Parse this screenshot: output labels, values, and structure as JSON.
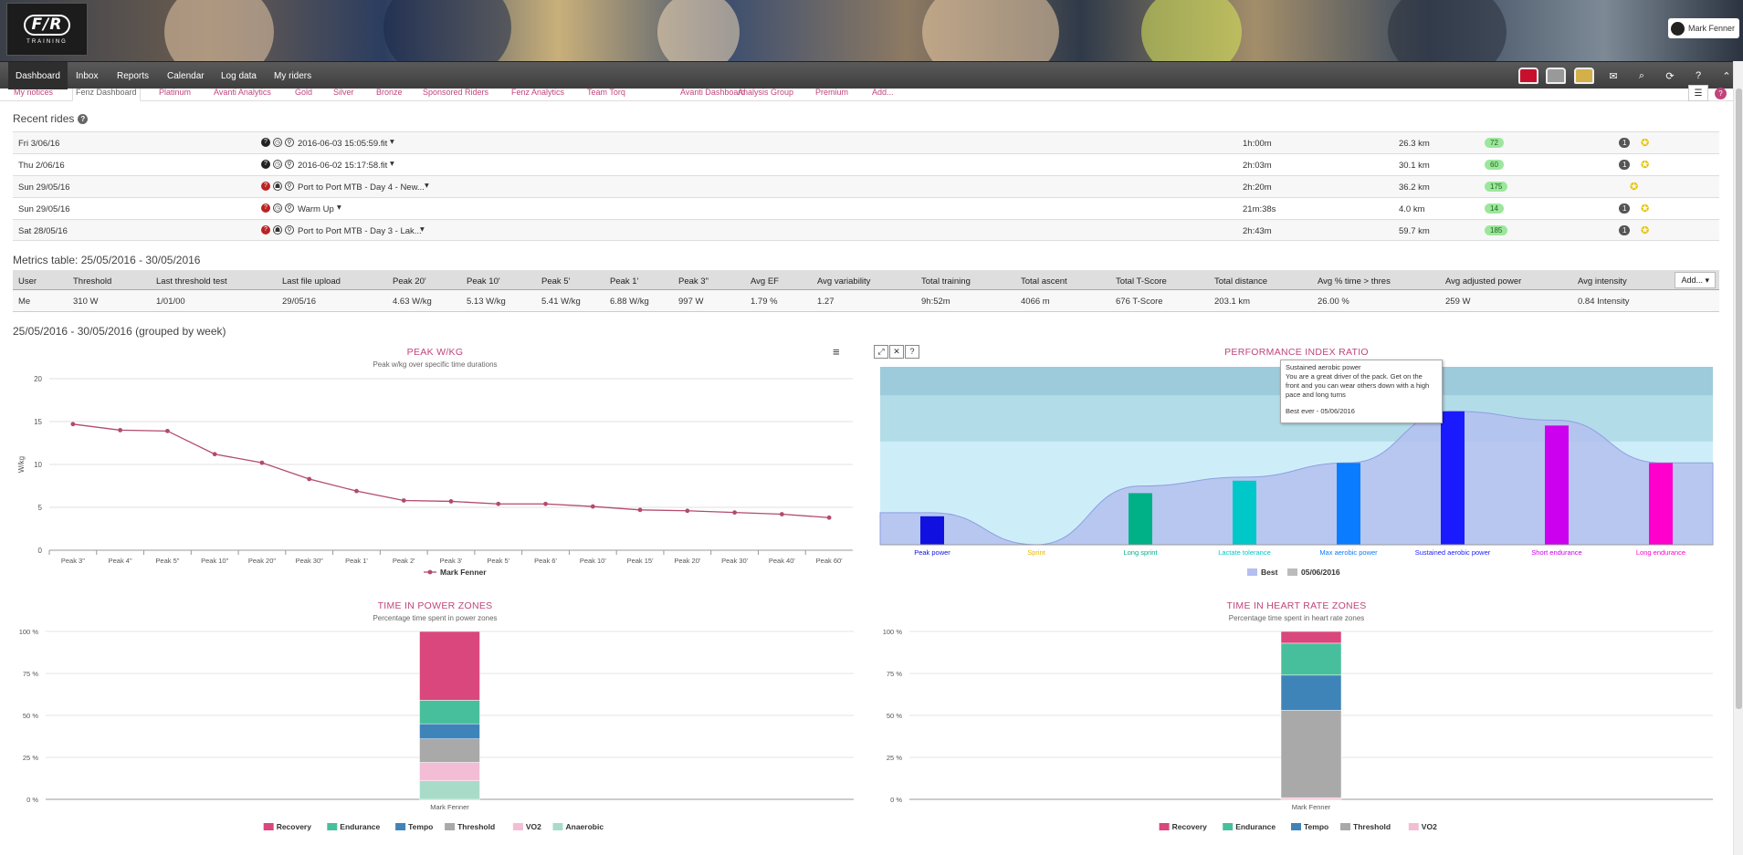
{
  "banner": {
    "logo_text": "F/R",
    "logo_sub": "TRAINING",
    "user_name": "Mark Fenner"
  },
  "nav": {
    "items": [
      "Dashboard",
      "Inbox",
      "Reports",
      "Calendar",
      "Log data",
      "My riders"
    ],
    "active": "Dashboard"
  },
  "tabs": {
    "items": [
      "My notices",
      "Fenz Dashboard",
      "Platinum",
      "Avanti Analytics",
      "Gold",
      "Silver",
      "Bronze",
      "Sponsored Riders",
      "Fenz Analytics",
      "Team Torq",
      "Avanti Dashboard",
      "Analysis Group",
      "Premium",
      "Add..."
    ],
    "active": "Fenz Dashboard",
    "badge": "?"
  },
  "recent_rides": {
    "title": "Recent rides",
    "rows": [
      {
        "date": "Fri 3/06/16",
        "name": "2016-06-03 15:05:59.fit",
        "duration": "1h:00m",
        "distance": "26.3 km",
        "tscore": "72",
        "pill": "1"
      },
      {
        "date": "Thu 2/06/16",
        "name": "2016-06-02 15:17:58.fit",
        "duration": "2h:03m",
        "distance": "30.1 km",
        "tscore": "60",
        "pill": "1"
      },
      {
        "date": "Sun 29/05/16",
        "name": "Port to Port MTB - Day 4 - New...",
        "duration": "2h:20m",
        "distance": "36.2 km",
        "tscore": "175",
        "pill": ""
      },
      {
        "date": "Sun 29/05/16",
        "name": "Warm Up",
        "duration": "21m:38s",
        "distance": "4.0 km",
        "tscore": "14",
        "pill": "1"
      },
      {
        "date": "Sat 28/05/16",
        "name": "Port to Port MTB - Day 3 - Lak...",
        "duration": "2h:43m",
        "distance": "59.7 km",
        "tscore": "185",
        "pill": "1"
      }
    ]
  },
  "metrics": {
    "title": "Metrics table: 25/05/2016 - 30/05/2016",
    "headers": [
      "User",
      "Threshold",
      "Last threshold test",
      "Last file upload",
      "Peak 20'",
      "Peak 10'",
      "Peak 5'",
      "Peak 1'",
      "Peak 3\"",
      "Avg EF",
      "Avg variability",
      "Total training",
      "Total ascent",
      "Total T-Score",
      "Total distance",
      "Avg % time > thres",
      "Avg adjusted power",
      "Avg intensity"
    ],
    "row": [
      "Me",
      "310 W",
      "1/01/00",
      "29/05/16",
      "4.63 W/kg",
      "5.13 W/kg",
      "5.41 W/kg",
      "6.88 W/kg",
      "997 W",
      "1.79 %",
      "1.27",
      "9h:52m",
      "4066 m",
      "676 T-Score",
      "203.1 km",
      "26.00 %",
      "259 W",
      "0.84 Intensity"
    ],
    "add_label": "Add..."
  },
  "period_title": "25/05/2016 - 30/05/2016 (grouped by week)",
  "charts": {
    "peak": {
      "title": "PEAK W/KG",
      "subtitle": "Peak w/kg over specific time durations"
    },
    "pir": {
      "title": "PERFORMANCE INDEX RATIO"
    },
    "power_zones": {
      "title": "TIME IN POWER ZONES",
      "subtitle": "Percentage time spent in power zones"
    },
    "hr_zones": {
      "title": "TIME IN HEART RATE ZONES",
      "subtitle": "Percentage time spent in heart rate zones"
    }
  },
  "tooltip": {
    "title": "Sustained aerobic power",
    "body": "You are a great driver of the pack. Get on the front and you can wear others down with a high pace and long turns",
    "footer": "Best ever - 05/06/2016"
  },
  "chart_data": [
    {
      "type": "line",
      "title": "PEAK W/KG",
      "subtitle": "Peak w/kg over specific time durations",
      "ylabel": "W/kg",
      "ylim": [
        0,
        20
      ],
      "yticks": [
        0,
        5,
        10,
        15,
        20
      ],
      "categories": [
        "Peak 3\"",
        "Peak 4\"",
        "Peak 5\"",
        "Peak 10\"",
        "Peak 20\"",
        "Peak 30\"",
        "Peak 1'",
        "Peak 2'",
        "Peak 3'",
        "Peak 5'",
        "Peak 6'",
        "Peak 10'",
        "Peak 15'",
        "Peak 20'",
        "Peak 30'",
        "Peak 40'",
        "Peak 60'"
      ],
      "series": [
        {
          "name": "Mark Fenner",
          "color": "#b24a70",
          "values": [
            14.7,
            14.0,
            13.9,
            11.2,
            10.2,
            8.3,
            6.9,
            5.8,
            5.7,
            5.4,
            5.4,
            5.1,
            4.7,
            4.6,
            4.4,
            4.2,
            3.8
          ]
        }
      ],
      "grid": true,
      "legend": "bottom"
    },
    {
      "type": "bar",
      "title": "PERFORMANCE INDEX RATIO",
      "categories": [
        "Peak power",
        "Sprint",
        "Long sprint",
        "Lactate tolerance",
        "Max aerobic power",
        "Sustained aerobic power",
        "Short endurance",
        "Long endurance"
      ],
      "category_colors": [
        "#1010e0",
        "#e6b800",
        "#00b086",
        "#00c8c8",
        "#0a7cff",
        "#1a1aff",
        "#cc00ee",
        "#ff00cc"
      ],
      "series": [
        {
          "name": "05/06/2016",
          "type": "bar",
          "values": [
            16,
            0,
            29,
            36,
            46,
            75,
            67,
            46
          ]
        },
        {
          "name": "Best",
          "type": "area",
          "color": "#b3bfef",
          "values": [
            18,
            0,
            33,
            38,
            46,
            75,
            70,
            46
          ]
        }
      ],
      "ylim": [
        0,
        100
      ],
      "bands": [
        "#cdeef8",
        "#b3dce9",
        "#9ecbdb"
      ],
      "legend": "bottom"
    },
    {
      "type": "bar",
      "stacked": true,
      "title": "TIME IN POWER ZONES",
      "subtitle": "Percentage time spent in power zones",
      "categories": [
        "Mark Fenner"
      ],
      "ylim": [
        0,
        100
      ],
      "yticks": [
        "0 %",
        "25 %",
        "50 %",
        "75 %",
        "100 %"
      ],
      "series": [
        {
          "name": "Anaerobic",
          "color": "#a8dcc9",
          "values": [
            11
          ]
        },
        {
          "name": "VO2",
          "color": "#f4bdd6",
          "values": [
            11
          ]
        },
        {
          "name": "Threshold",
          "color": "#a9a9a9",
          "values": [
            14
          ]
        },
        {
          "name": "Tempo",
          "color": "#3f84b9",
          "values": [
            9
          ]
        },
        {
          "name": "Endurance",
          "color": "#48bf9c",
          "values": [
            14
          ]
        },
        {
          "name": "Recovery",
          "color": "#d9477c",
          "values": [
            41
          ]
        }
      ],
      "legend_order": [
        "Recovery",
        "Endurance",
        "Tempo",
        "Threshold",
        "VO2",
        "Anaerobic"
      ],
      "legend": "bottom"
    },
    {
      "type": "bar",
      "stacked": true,
      "title": "TIME IN HEART RATE ZONES",
      "subtitle": "Percentage time spent in heart rate zones",
      "categories": [
        "Mark Fenner"
      ],
      "ylim": [
        0,
        100
      ],
      "yticks": [
        "0 %",
        "25 %",
        "50 %",
        "75 %",
        "100 %"
      ],
      "series": [
        {
          "name": "VO2",
          "color": "#f4bdd6",
          "values": [
            1
          ]
        },
        {
          "name": "Threshold",
          "color": "#a9a9a9",
          "values": [
            52
          ]
        },
        {
          "name": "Tempo",
          "color": "#3f84b9",
          "values": [
            21
          ]
        },
        {
          "name": "Endurance",
          "color": "#48bf9c",
          "values": [
            19
          ]
        },
        {
          "name": "Recovery",
          "color": "#d9477c",
          "values": [
            7
          ]
        }
      ],
      "legend_order": [
        "Recovery",
        "Endurance",
        "Tempo",
        "Threshold",
        "VO2"
      ],
      "legend": "bottom"
    }
  ]
}
